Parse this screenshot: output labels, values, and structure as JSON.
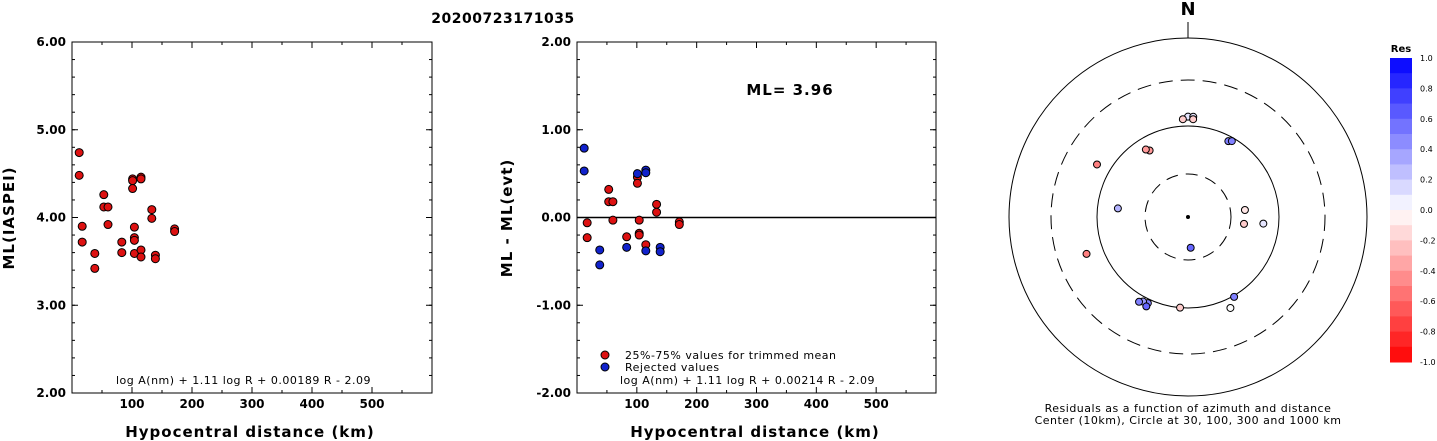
{
  "title": "20200723171035",
  "colors": {
    "red": "#dd1111",
    "blue": "#1122cc"
  },
  "left_chart": {
    "ylabel": "ML(IASPEI)",
    "xlabel": "Hypocentral distance (km)",
    "xticks": [
      "100",
      "200",
      "300",
      "400",
      "500"
    ],
    "yticks": [
      "2.00",
      "3.00",
      "4.00",
      "5.00",
      "6.00"
    ],
    "formula": "log A(nm) + 1.11 log R + 0.00189 R - 2.09"
  },
  "mid_chart": {
    "ylabel": "ML - ML(evt)",
    "xlabel": "Hypocentral distance (km)",
    "xticks": [
      "100",
      "200",
      "300",
      "400",
      "500"
    ],
    "yticks": [
      "-2.00",
      "-1.00",
      "0.00",
      "1.00",
      "2.00"
    ],
    "ml_text": "ML= 3.96",
    "legend_red": "25%-75% values for trimmed mean",
    "legend_blue": "Rejected values",
    "formula": "log A(nm) + 1.11 log R + 0.00214 R - 2.09"
  },
  "polar": {
    "north": "N",
    "caption1": "Residuals as a function of azimuth and distance",
    "caption2": "Center (10km), Circle at 30, 100, 300 and 1000 km"
  },
  "colorbar": {
    "title": "Res",
    "labels": [
      "1.0",
      "0.8",
      "0.6",
      "0.4",
      "0.2",
      "0.0",
      "-0.2",
      "-0.4",
      "-0.6",
      "-0.8",
      "-1.0"
    ]
  },
  "chart_data": [
    {
      "type": "scatter",
      "xlabel": "Hypocentral distance (km)",
      "ylabel": "ML(IASPEI)",
      "xlim": [
        0,
        600
      ],
      "ylim": [
        2,
        6
      ],
      "points": [
        [
          12,
          4.74
        ],
        [
          12,
          4.48
        ],
        [
          17,
          3.9
        ],
        [
          17,
          3.72
        ],
        [
          38,
          3.59
        ],
        [
          38,
          3.42
        ],
        [
          53,
          4.26
        ],
        [
          53,
          4.12
        ],
        [
          60,
          4.12
        ],
        [
          60,
          3.92
        ],
        [
          83,
          3.72
        ],
        [
          83,
          3.6
        ],
        [
          101,
          4.44
        ],
        [
          101,
          4.42
        ],
        [
          101,
          4.33
        ],
        [
          104,
          3.89
        ],
        [
          104,
          3.77
        ],
        [
          104,
          3.74
        ],
        [
          104,
          3.59
        ],
        [
          115,
          4.46
        ],
        [
          115,
          4.44
        ],
        [
          115,
          3.63
        ],
        [
          115,
          3.55
        ],
        [
          133,
          4.09
        ],
        [
          133,
          3.99
        ],
        [
          139,
          3.57
        ],
        [
          139,
          3.53
        ],
        [
          171,
          3.87
        ],
        [
          171,
          3.84
        ]
      ]
    },
    {
      "type": "scatter",
      "xlabel": "Hypocentral distance (km)",
      "ylabel": "ML - ML(evt)",
      "xlim": [
        0,
        600
      ],
      "ylim": [
        -2,
        2
      ],
      "series": [
        {
          "name": "25%-75% values for trimmed mean",
          "color": "#dd1111",
          "points": [
            [
              17,
              -0.06
            ],
            [
              17,
              -0.23
            ],
            [
              53,
              0.32
            ],
            [
              53,
              0.18
            ],
            [
              60,
              0.18
            ],
            [
              60,
              -0.03
            ],
            [
              83,
              -0.22
            ],
            [
              101,
              0.46
            ],
            [
              101,
              0.39
            ],
            [
              104,
              -0.03
            ],
            [
              104,
              -0.18
            ],
            [
              104,
              -0.2
            ],
            [
              115,
              -0.31
            ],
            [
              133,
              0.15
            ],
            [
              133,
              0.06
            ],
            [
              171,
              -0.05
            ],
            [
              171,
              -0.08
            ]
          ]
        },
        {
          "name": "Rejected values",
          "color": "#1122cc",
          "points": [
            [
              12,
              0.79
            ],
            [
              12,
              0.53
            ],
            [
              38,
              -0.37
            ],
            [
              38,
              -0.54
            ],
            [
              83,
              -0.34
            ],
            [
              101,
              0.5
            ],
            [
              115,
              0.54
            ],
            [
              115,
              0.51
            ],
            [
              115,
              -0.38
            ],
            [
              139,
              -0.34
            ],
            [
              139,
              -0.39
            ]
          ]
        }
      ]
    },
    {
      "type": "scatter",
      "subtype": "polar",
      "rings_km": [
        30,
        100,
        300,
        1000
      ],
      "points": [
        {
          "az": 0,
          "dist": 125,
          "res": 0.1
        },
        {
          "az": 3,
          "dist": 125,
          "res": 0.1
        },
        {
          "az": -3,
          "dist": 118,
          "res": -0.2
        },
        {
          "az": 3,
          "dist": 118,
          "res": -0.2
        },
        {
          "az": 28,
          "dist": 88,
          "res": 0.5
        },
        {
          "az": 30,
          "dist": 92,
          "res": 0.5
        },
        {
          "az": -30,
          "dist": 70,
          "res": -0.4
        },
        {
          "az": -32,
          "dist": 75,
          "res": -0.4
        },
        {
          "az": -60,
          "dist": 140,
          "res": -0.5
        },
        {
          "az": -83,
          "dist": 60,
          "res": 0.3
        },
        {
          "az": 83,
          "dist": 43,
          "res": -0.1
        },
        {
          "az": 97,
          "dist": 42,
          "res": -0.2
        },
        {
          "az": 95,
          "dist": 68,
          "res": 0.1
        },
        {
          "az": 175,
          "dist": 22,
          "res": 0.6
        },
        {
          "az": -110,
          "dist": 150,
          "res": -0.5
        },
        {
          "az": -155,
          "dist": 110,
          "res": 0.5
        },
        {
          "az": -152,
          "dist": 112,
          "res": 0.4
        },
        {
          "az": -150,
          "dist": 118,
          "res": 0.5
        },
        {
          "az": -155,
          "dist": 120,
          "res": 0.6
        },
        {
          "az": -175,
          "dist": 100,
          "res": -0.2
        },
        {
          "az": 150,
          "dist": 103,
          "res": 0.5
        },
        {
          "az": 155,
          "dist": 125,
          "res": 0.0
        }
      ]
    }
  ]
}
